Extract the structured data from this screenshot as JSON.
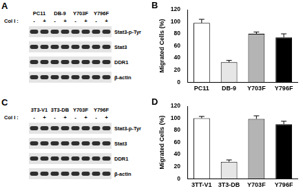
{
  "blots": [
    {
      "panel": "A",
      "treatment_label": "Col I :",
      "treatment": [
        "-",
        "+"
      ],
      "lanes": [
        "PC11",
        "DB-9",
        "Y703F",
        "Y796F"
      ],
      "rows": [
        "Stat3-p-Tyr",
        "Stat3",
        "DDR1",
        "β-actin"
      ]
    },
    {
      "panel": "C",
      "treatment_label": "Col I :",
      "treatment": [
        "-",
        "+"
      ],
      "lanes": [
        "3T3-V1",
        "3T3-DB",
        "Y703F",
        "Y796F"
      ],
      "rows": [
        "Stat3-p-Tyr",
        "Stat3",
        "DDR1",
        "β-actin"
      ]
    }
  ],
  "chart_data": [
    {
      "panel": "B",
      "type": "bar",
      "y_label": "Migrated Cells (%)",
      "categories": [
        "PC11",
        "DB-9",
        "Y703F",
        "Y796F"
      ],
      "values": [
        98,
        33,
        80,
        74
      ],
      "errors": [
        6,
        3,
        3,
        6
      ],
      "colors": [
        "#ffffff",
        "#e6e6e6",
        "#b4b4b4",
        "#000000"
      ],
      "ylim": [
        0,
        120
      ],
      "yticks": [
        0,
        20,
        40,
        60,
        80,
        100,
        120
      ],
      "grid": false
    },
    {
      "panel": "D",
      "type": "bar",
      "y_label": "Migrated Cells (%)",
      "categories": [
        "3TT-V1",
        "3T3-DB",
        "Y703F",
        "Y796F"
      ],
      "values": [
        100,
        28,
        99,
        90
      ],
      "errors": [
        3,
        3,
        5,
        5
      ],
      "colors": [
        "#ffffff",
        "#e6e6e6",
        "#b4b4b4",
        "#000000"
      ],
      "ylim": [
        0,
        120
      ],
      "yticks": [
        0,
        20,
        40,
        60,
        80,
        100,
        120
      ],
      "grid": false
    }
  ]
}
